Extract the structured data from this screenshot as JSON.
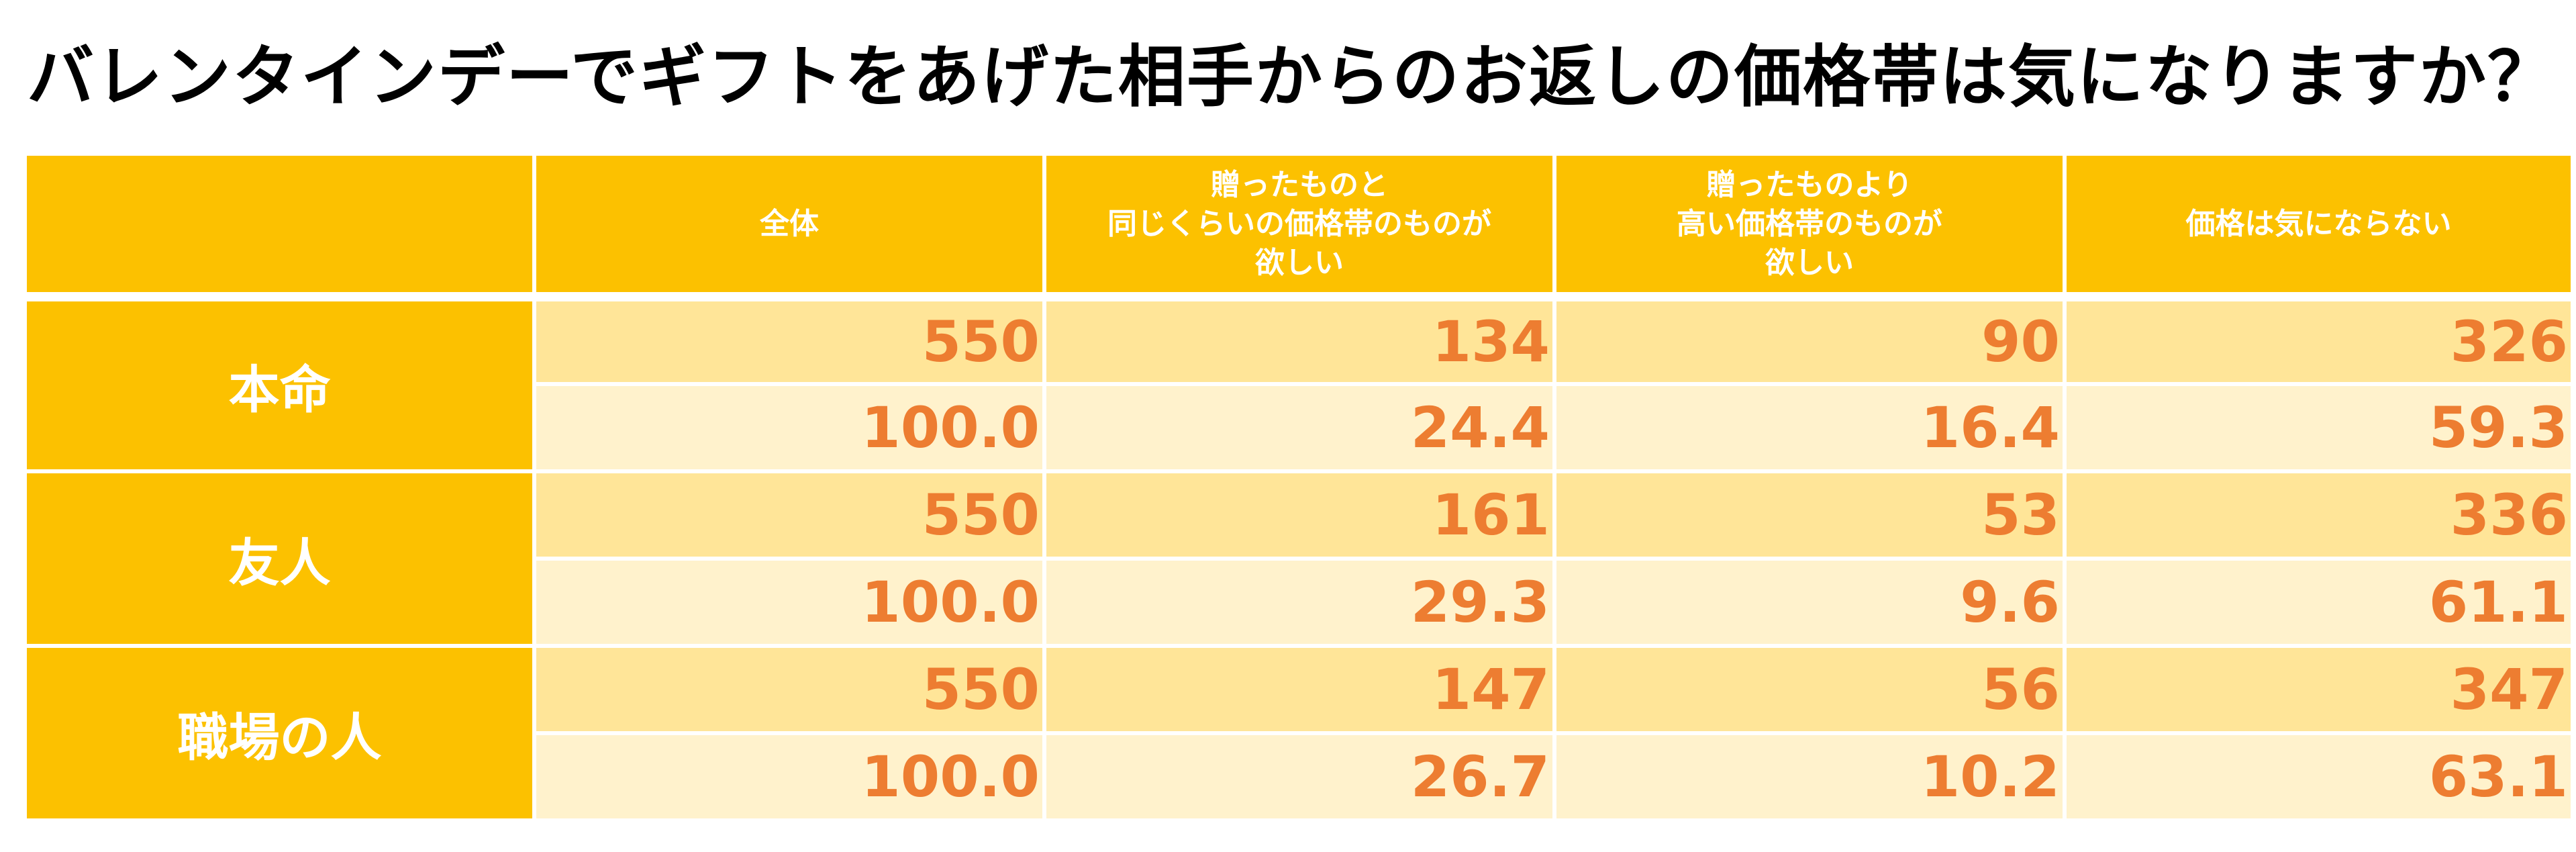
{
  "title": "バレンタインデーでギフトをあげた相手からのお返しの価格帯は気になりますか？",
  "columns": [
    {
      "lines": [
        "全体"
      ]
    },
    {
      "lines": [
        "贈ったものと",
        "同じくらいの価格帯のものが",
        "欲しい"
      ]
    },
    {
      "lines": [
        "贈ったものより",
        "高い価格帯のものが",
        "欲しい"
      ]
    },
    {
      "lines": [
        "価格は気にならない"
      ]
    }
  ],
  "rows": [
    {
      "label": "本命",
      "counts": [
        "550",
        "134",
        "90",
        "326"
      ],
      "percents": [
        "100.0",
        "24.4",
        "16.4",
        "59.3"
      ]
    },
    {
      "label": "友人",
      "counts": [
        "550",
        "161",
        "53",
        "336"
      ],
      "percents": [
        "100.0",
        "29.3",
        "9.6",
        "61.1"
      ]
    },
    {
      "label": "職場の人",
      "counts": [
        "550",
        "147",
        "56",
        "347"
      ],
      "percents": [
        "100.0",
        "26.7",
        "10.2",
        "63.1"
      ]
    }
  ],
  "colors": {
    "header_bg": "#fcc100",
    "count_row_bg": "#ffe598",
    "percent_row_bg": "#fff2cc",
    "value_text": "#ed7d31",
    "header_text": "#ffffff"
  },
  "chart_data": {
    "type": "table",
    "title": "バレンタインデーでギフトをあげた相手からのお返しの価格帯は気になりますか？",
    "columns": [
      "全体",
      "贈ったものと同じくらいの価格帯のものが欲しい",
      "贈ったものより高い価格帯のものが欲しい",
      "価格は気にならない"
    ],
    "row_groups": [
      "本命",
      "友人",
      "職場の人"
    ],
    "counts": [
      [
        550,
        134,
        90,
        326
      ],
      [
        550,
        161,
        53,
        336
      ],
      [
        550,
        147,
        56,
        347
      ]
    ],
    "percents": [
      [
        100.0,
        24.4,
        16.4,
        59.3
      ],
      [
        100.0,
        29.3,
        9.6,
        61.1
      ],
      [
        100.0,
        26.7,
        10.2,
        63.1
      ]
    ]
  }
}
